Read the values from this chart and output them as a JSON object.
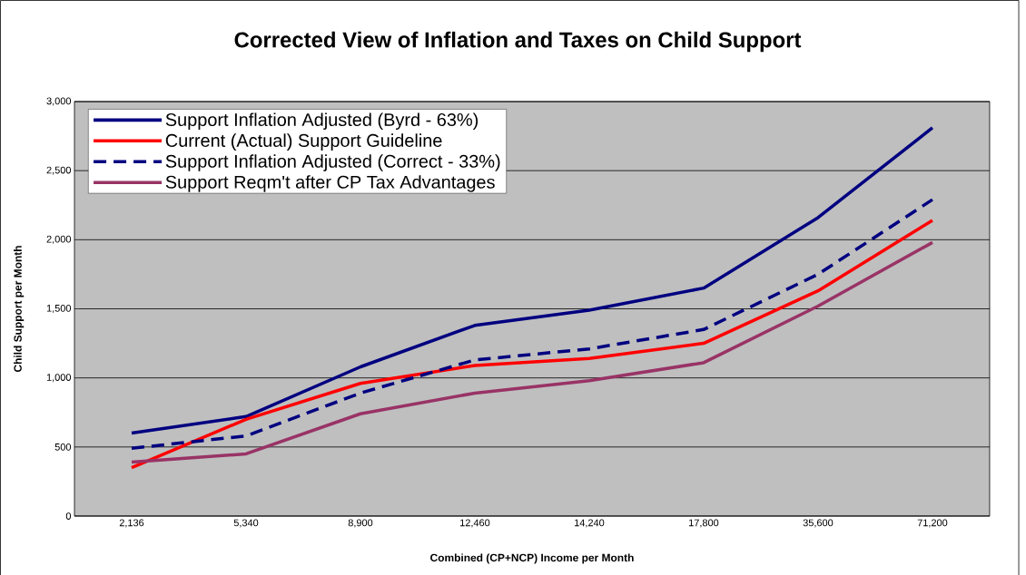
{
  "chart_data": {
    "type": "line",
    "title": "Corrected View of Inflation and Taxes on Child Support",
    "xlabel": "Combined (CP+NCP) Income per Month",
    "ylabel": "Child Support per Month",
    "categories": [
      "2,136",
      "5,340",
      "8,900",
      "12,460",
      "14,240",
      "17,800",
      "35,600",
      "71,200"
    ],
    "series": [
      {
        "name": "Support Inflation Adjusted (Byrd - 63%)",
        "color": "#000080",
        "line_style": "solid",
        "values": [
          600,
          720,
          1080,
          1380,
          1490,
          1650,
          2160,
          2810
        ]
      },
      {
        "name": "Current (Actual) Support Guideline",
        "color": "#ff0000",
        "line_style": "solid",
        "values": [
          350,
          700,
          960,
          1090,
          1140,
          1250,
          1630,
          2140
        ]
      },
      {
        "name": "Support Inflation Adjusted (Correct - 33%)",
        "color": "#000080",
        "line_style": "dashed",
        "values": [
          490,
          580,
          890,
          1130,
          1210,
          1350,
          1750,
          2290
        ]
      },
      {
        "name": "Support Reqm't after CP Tax Advantages",
        "color": "#993366",
        "line_style": "solid",
        "values": [
          390,
          450,
          740,
          890,
          980,
          1110,
          1520,
          1980
        ]
      }
    ],
    "ylim": [
      0,
      3000
    ],
    "yticks": [
      {
        "value": 0,
        "label": "0"
      },
      {
        "value": 500,
        "label": "500"
      },
      {
        "value": 1000,
        "label": "1,000"
      },
      {
        "value": 1500,
        "label": "1,500"
      },
      {
        "value": 2000,
        "label": "2,000"
      },
      {
        "value": 2500,
        "label": "2,500"
      },
      {
        "value": 3000,
        "label": "3,000"
      }
    ],
    "grid": "y",
    "legend": "top left"
  }
}
